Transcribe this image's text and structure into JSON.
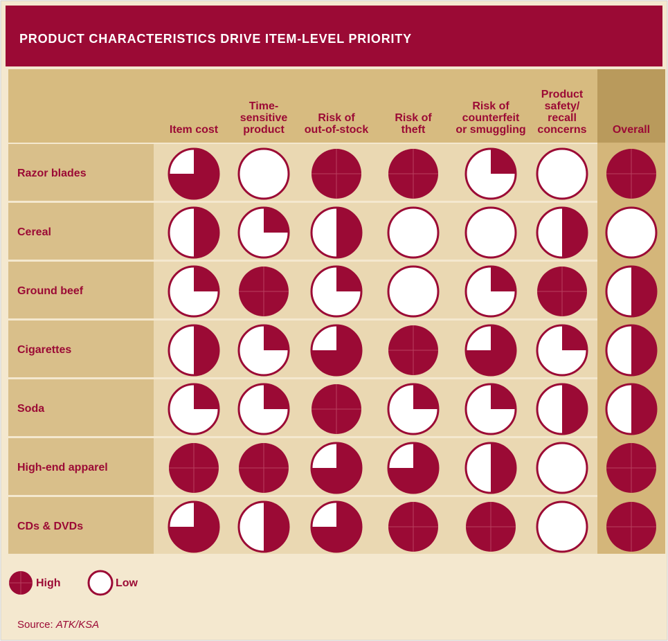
{
  "header": {
    "title": "PRODUCT CHARACTERISTICS DRIVE ITEM-LEVEL PRIORITY"
  },
  "table": {
    "columns": [
      [
        "Item cost"
      ],
      [
        "Time-",
        "sensitive",
        "product"
      ],
      [
        "Risk of",
        "out-of-stock"
      ],
      [
        "Risk of",
        "theft"
      ],
      [
        "Risk of",
        "counterfeit",
        "or smuggling"
      ],
      [
        "Product",
        "safety/",
        "recall",
        "concerns"
      ],
      [
        "Overall"
      ]
    ],
    "rows": [
      {
        "label": "Razor blades",
        "values": [
          3,
          0,
          4,
          4,
          1,
          0,
          4
        ]
      },
      {
        "label": "Cereal",
        "values": [
          2,
          1,
          2,
          0,
          0,
          2,
          0
        ]
      },
      {
        "label": "Ground beef",
        "values": [
          1,
          4,
          1,
          0,
          1,
          4,
          2
        ]
      },
      {
        "label": "Cigarettes",
        "values": [
          2,
          1,
          3,
          4,
          3,
          1,
          2
        ]
      },
      {
        "label": "Soda",
        "values": [
          1,
          1,
          4,
          1,
          1,
          2,
          2
        ]
      },
      {
        "label": "High-end apparel",
        "values": [
          4,
          4,
          3,
          3,
          2,
          0,
          4
        ]
      },
      {
        "label": "CDs & DVDs",
        "values": [
          3,
          2,
          3,
          4,
          4,
          0,
          4
        ]
      }
    ],
    "max": 4
  },
  "legend": [
    {
      "label": "High",
      "value": 4
    },
    {
      "label": "Low",
      "value": 0
    }
  ],
  "source": {
    "prefix": "Source:",
    "name": "ATK/KSA"
  }
}
